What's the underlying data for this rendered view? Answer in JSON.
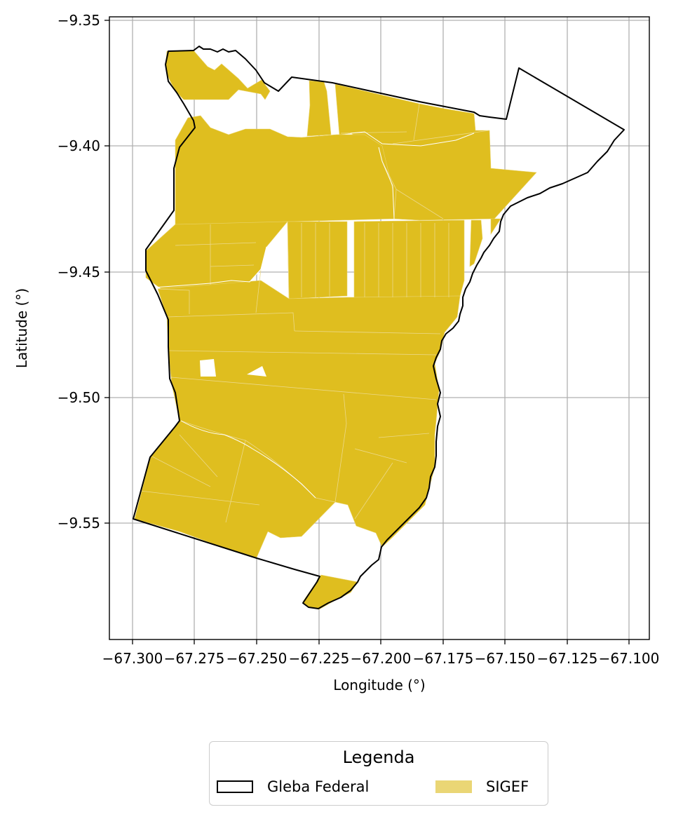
{
  "map": {
    "xlabel": "Longitude (°)",
    "ylabel": "Latitude (°)",
    "xticks": [
      "−67.300",
      "−67.275",
      "−67.250",
      "−67.225",
      "−67.200",
      "−67.175",
      "−67.150",
      "−67.125",
      "−67.100"
    ],
    "yticks": [
      "−9.35",
      "−9.40",
      "−9.45",
      "−9.50",
      "−9.55"
    ],
    "grid": true,
    "colors": {
      "sigef_fill": "#dfbe1f",
      "sigef_legend_swatch": "#ead675",
      "gleba_outline": "#000000",
      "grid": "#b0b0b0"
    }
  },
  "legend": {
    "title": "Legenda",
    "items": [
      {
        "label": "Gleba Federal",
        "icon": "outline-rectangle-icon"
      },
      {
        "label": "SIGEF",
        "icon": "filled-rectangle-icon"
      }
    ]
  }
}
